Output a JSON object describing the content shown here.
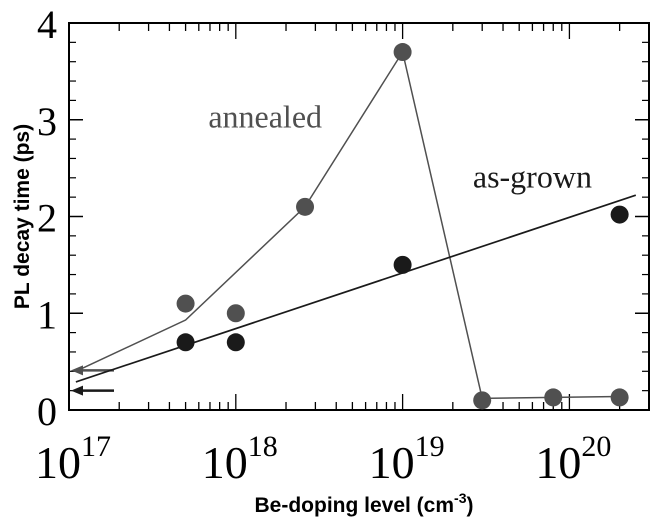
{
  "chart_data": {
    "type": "scatter",
    "x_scale": "log",
    "xlim": [
      1e+17,
      3e+20
    ],
    "ylim": [
      0,
      4
    ],
    "xlabel": {
      "text": "Be-doping level (cm",
      "sup": "-3",
      "tail": ")"
    },
    "ylabel": "PL decay time (ps)",
    "x_ticks": [
      {
        "value": 1e+17,
        "base": "10",
        "exp": "17"
      },
      {
        "value": 1e+18,
        "base": "10",
        "exp": "18"
      },
      {
        "value": 1e+19,
        "base": "10",
        "exp": "19"
      },
      {
        "value": 1e+20,
        "base": "10",
        "exp": "20"
      }
    ],
    "y_ticks": [
      {
        "value": 0,
        "label": "0"
      },
      {
        "value": 1,
        "label": "1"
      },
      {
        "value": 2,
        "label": "2"
      },
      {
        "value": 3,
        "label": "3"
      },
      {
        "value": 4,
        "label": "4"
      }
    ],
    "series": [
      {
        "name": "annealed",
        "color": "#505050",
        "points": [
          {
            "x": 5e+17,
            "y": 1.1
          },
          {
            "x": 1e+18,
            "y": 1.0
          },
          {
            "x": 2.6e+18,
            "y": 2.1
          },
          {
            "x": 1e+19,
            "y": 3.7
          },
          {
            "x": 3e+19,
            "y": 0.1
          },
          {
            "x": 8e+19,
            "y": 0.13
          },
          {
            "x": 2e+20,
            "y": 0.13
          }
        ],
        "fit": [
          {
            "x": 1.1e+17,
            "y": 0.4
          },
          {
            "x": 5e+17,
            "y": 0.93
          },
          {
            "x": 2.6e+18,
            "y": 2.1
          },
          {
            "x": 1e+19,
            "y": 3.7
          },
          {
            "x": 3e+19,
            "y": 0.12
          },
          {
            "x": 2e+20,
            "y": 0.14
          }
        ],
        "arrow_y": 0.41
      },
      {
        "name": "as-grown",
        "color": "#1a1a1a",
        "points": [
          {
            "x": 5e+17,
            "y": 0.7
          },
          {
            "x": 1e+18,
            "y": 0.7
          },
          {
            "x": 1e+19,
            "y": 1.5
          },
          {
            "x": 2e+20,
            "y": 2.02
          }
        ],
        "fit": [
          {
            "x": 1.1e+17,
            "y": 0.29
          },
          {
            "x": 2.5e+20,
            "y": 2.22
          }
        ],
        "arrow_y": 0.2
      }
    ],
    "annotations": [
      {
        "text": "annealed",
        "series": "annealed",
        "x": 1.5e+18,
        "y": 2.92
      },
      {
        "text": "as-grown",
        "series": "as-grown",
        "x": 6e+19,
        "y": 2.3
      }
    ],
    "grid": false,
    "legend": "none"
  }
}
